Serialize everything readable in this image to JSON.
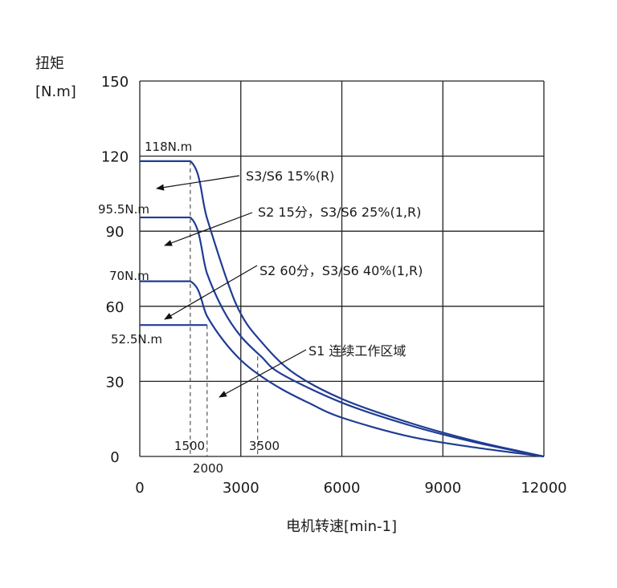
{
  "chart_data": {
    "type": "line",
    "title": "",
    "ylabel_line1": "扭矩",
    "ylabel_line2": "[N.m]",
    "xlabel": "电机转速[min-1]",
    "xlim": [
      0,
      12000
    ],
    "ylim": [
      0,
      150
    ],
    "x_ticks": [
      0,
      3000,
      6000,
      9000,
      12000
    ],
    "y_ticks": [
      0,
      30,
      60,
      90,
      120,
      150
    ],
    "grid": true,
    "series": [
      {
        "name": "S3/S6 15%(R)",
        "points": [
          [
            0,
            118
          ],
          [
            1500,
            118
          ],
          [
            2000,
            95
          ],
          [
            2600,
            70
          ],
          [
            3000,
            57
          ],
          [
            3500,
            47.5
          ],
          [
            4500,
            34
          ],
          [
            6000,
            23
          ],
          [
            8000,
            13.5
          ],
          [
            10000,
            6
          ],
          [
            12000,
            0
          ]
        ]
      },
      {
        "name": "S2 15分，S3/S6 25%(1,R)",
        "points": [
          [
            0,
            95.5
          ],
          [
            1500,
            95.5
          ],
          [
            2000,
            73
          ],
          [
            2500,
            58
          ],
          [
            3000,
            48
          ],
          [
            3600,
            40
          ],
          [
            4200,
            33
          ],
          [
            6000,
            21.5
          ],
          [
            8000,
            12.5
          ],
          [
            10000,
            5.5
          ],
          [
            12000,
            0
          ]
        ]
      },
      {
        "name": "S2 60分，S3/S6 40%(1,R)",
        "points": [
          [
            0,
            70
          ],
          [
            1500,
            70
          ],
          [
            2000,
            56
          ],
          [
            2500,
            46
          ],
          [
            3000,
            38.5
          ],
          [
            3500,
            33
          ],
          [
            4200,
            27
          ],
          [
            5000,
            21.5
          ],
          [
            6000,
            15.5
          ],
          [
            8000,
            8
          ],
          [
            10000,
            3.5
          ],
          [
            12000,
            0
          ]
        ]
      },
      {
        "name": "S1 连续工作区域",
        "points": [
          [
            0,
            52.5
          ],
          [
            2000,
            52.5
          ]
        ]
      }
    ],
    "value_labels": [
      "118N.m",
      "95.5N.m",
      "70N.m",
      "52.5N.m"
    ],
    "dashed_markers": [
      "1500",
      "2000",
      "3500"
    ],
    "dashed_marker_values": [
      1500,
      2000,
      3500
    ]
  }
}
